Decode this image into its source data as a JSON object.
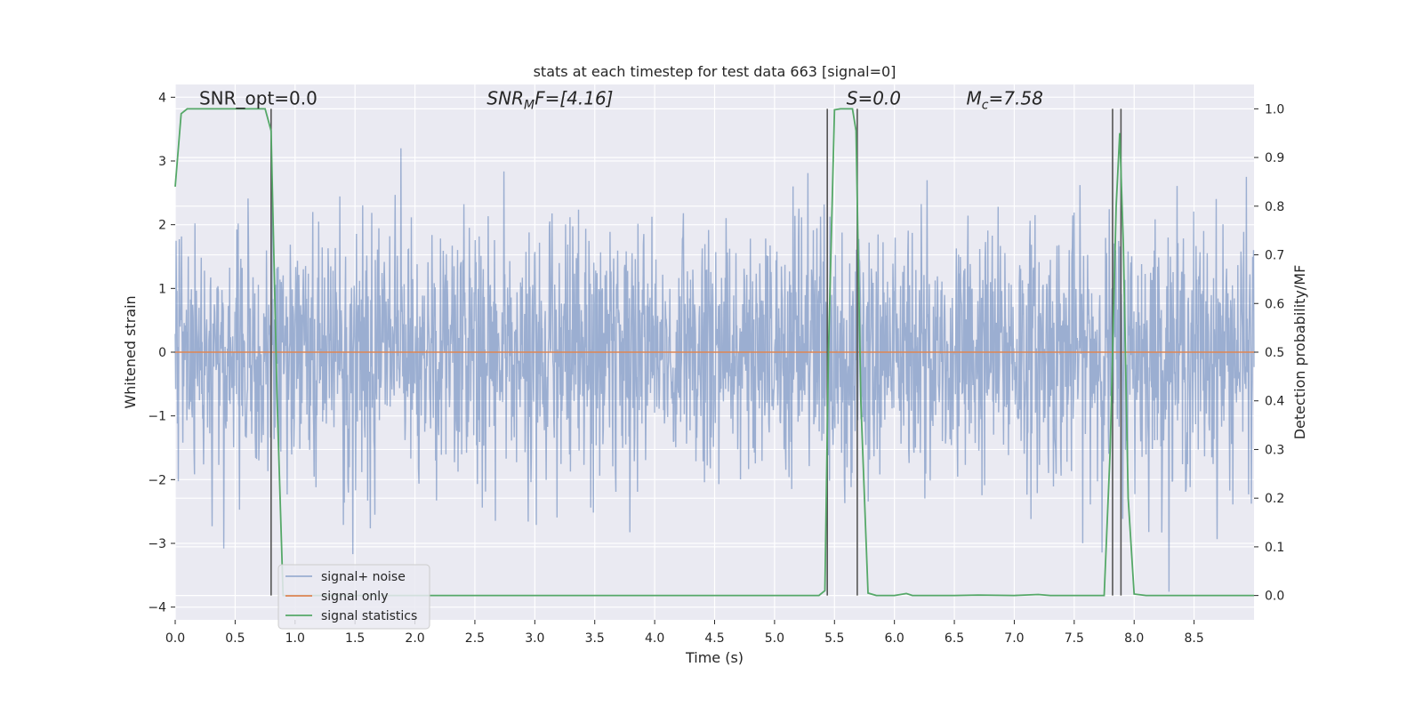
{
  "chart_data": {
    "type": "line",
    "title": "stats at each timestep for test data 663 [signal=0]",
    "xlabel": "Time (s)",
    "ylabel_left": "Whitened strain",
    "ylabel_right": "Detection probability/MF",
    "xlim": [
      0,
      9
    ],
    "ylim_left": [
      -4.2,
      4.2
    ],
    "ylim_right": [
      -0.05,
      1.05
    ],
    "x_ticks": [
      0.0,
      0.5,
      1.0,
      1.5,
      2.0,
      2.5,
      3.0,
      3.5,
      4.0,
      4.5,
      5.0,
      5.5,
      6.0,
      6.5,
      7.0,
      7.5,
      8.0,
      8.5
    ],
    "x_tick_labels": [
      "0.0",
      "0.5",
      "1.0",
      "1.5",
      "2.0",
      "2.5",
      "3.0",
      "3.5",
      "4.0",
      "4.5",
      "5.0",
      "5.5",
      "6.0",
      "6.5",
      "7.0",
      "7.5",
      "8.0",
      "8.5"
    ],
    "y_left_ticks": [
      -4,
      -3,
      -2,
      -1,
      0,
      1,
      2,
      3,
      4
    ],
    "y_left_tick_labels": [
      "−4",
      "−3",
      "−2",
      "−1",
      "0",
      "1",
      "2",
      "3",
      "4"
    ],
    "y_right_ticks": [
      0.0,
      0.1,
      0.2,
      0.3,
      0.4,
      0.5,
      0.6,
      0.7,
      0.8,
      0.9,
      1.0
    ],
    "y_right_tick_labels": [
      "0.0",
      "0.1",
      "0.2",
      "0.3",
      "0.4",
      "0.5",
      "0.6",
      "0.7",
      "0.8",
      "0.9",
      "1.0"
    ],
    "grid": true,
    "background": "#eaeaf2",
    "legend_placement": "lower-left",
    "series": [
      {
        "name": "signal+ noise",
        "axis": "left",
        "color": "#4c72b0",
        "alpha": 0.5,
        "description_kind": "dense noise",
        "amplitude_sigma": 1.0,
        "approx_range": [
          -4.0,
          4.0
        ]
      },
      {
        "name": "signal only",
        "axis": "left",
        "color": "#dd8452",
        "x": [
          0,
          9
        ],
        "y": [
          0,
          0
        ]
      },
      {
        "name": "signal statistics",
        "axis": "right",
        "color": "#55a868",
        "x": [
          0.0,
          0.05,
          0.1,
          0.2,
          0.3,
          0.4,
          0.5,
          0.6,
          0.7,
          0.75,
          0.8,
          0.85,
          0.9,
          1.0,
          1.5,
          2.0,
          2.5,
          3.0,
          3.5,
          4.0,
          4.5,
          5.0,
          5.37,
          5.42,
          5.45,
          5.5,
          5.55,
          5.6,
          5.65,
          5.68,
          5.72,
          5.78,
          5.85,
          6.0,
          6.1,
          6.15,
          6.2,
          6.5,
          6.7,
          7.0,
          7.2,
          7.3,
          7.5,
          7.75,
          7.8,
          7.85,
          7.88,
          7.91,
          7.95,
          8.0,
          8.1,
          8.5,
          9.0
        ],
        "y": [
          0.84,
          0.99,
          1.0,
          1.0,
          1.0,
          1.0,
          1.0,
          1.0,
          1.0,
          1.0,
          0.955,
          0.4,
          0.0,
          0.0,
          0.0,
          0.0,
          0.0,
          0.0,
          0.0,
          0.0,
          0.0,
          0.0,
          0.0,
          0.01,
          0.5,
          0.998,
          1.0,
          1.0,
          1.0,
          0.955,
          0.4,
          0.005,
          0.0,
          0.0,
          0.004,
          0.0,
          0.0,
          0.0,
          0.001,
          0.0,
          0.002,
          0.0,
          0.0,
          0.0,
          0.3,
          0.8,
          0.95,
          0.72,
          0.2,
          0.003,
          0.0,
          0.0,
          0.0
        ]
      }
    ],
    "vertical_lines": {
      "color": "#555555",
      "x": [
        0.8,
        5.44,
        5.69,
        7.82,
        7.89
      ],
      "y_top": 1.0,
      "y_bottom": 0.0
    },
    "annotations": [
      {
        "text": "SNR_opt=0.0",
        "x": 0.2,
        "y": 4.0
      },
      {
        "text": "SNR",
        "sub": "M",
        "rest": "F=[4.16]",
        "italic": true,
        "x": 2.6,
        "y": 4.0
      },
      {
        "text": "S",
        "rest": "=0.0",
        "italic": true,
        "x": 5.6,
        "y": 4.0
      },
      {
        "text": "M",
        "sub": "c",
        "rest": "=7.58",
        "italic": true,
        "x": 6.6,
        "y": 4.0
      }
    ]
  }
}
